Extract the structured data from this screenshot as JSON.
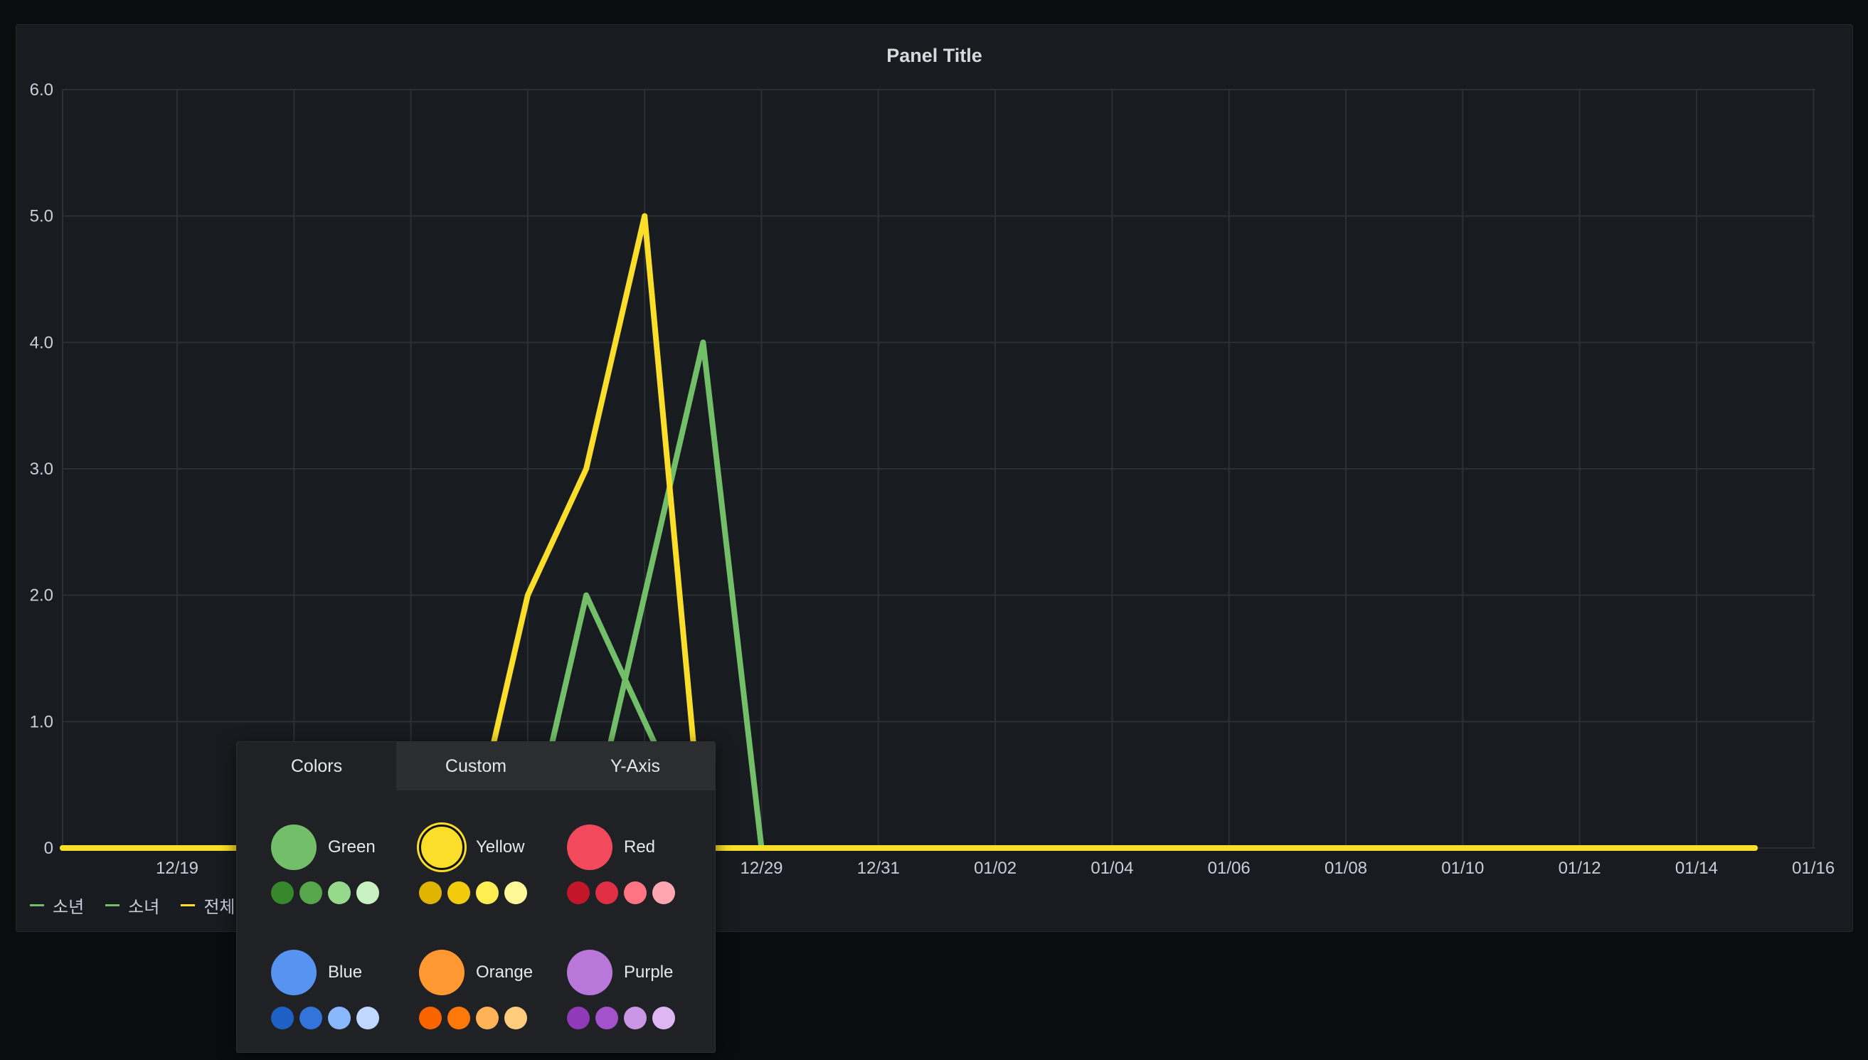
{
  "panel": {
    "title": "Panel Title"
  },
  "chart_data": {
    "type": "line",
    "title": "Panel Title",
    "xlabel": "",
    "ylabel": "",
    "x_range": [
      "12/17",
      "01/16"
    ],
    "ylim": [
      0,
      6
    ],
    "y_ticks": [
      "0",
      "1.0",
      "2.0",
      "3.0",
      "4.0",
      "5.0",
      "6.0"
    ],
    "x_ticks": [
      "12/19",
      "12/21",
      "12/23",
      "12/25",
      "12/27",
      "12/29",
      "12/31",
      "01/02",
      "01/04",
      "01/06",
      "01/08",
      "01/10",
      "01/12",
      "01/14",
      "01/16"
    ],
    "grid": true,
    "legend_position": "bottom-left",
    "series": [
      {
        "name": "소년",
        "color": "#73bf69",
        "x": [
          "12/17",
          "12/25",
          "12/26",
          "12/27",
          "12/28",
          "12/29",
          "01/15"
        ],
        "y": [
          0,
          0,
          2,
          1,
          0,
          0,
          0
        ]
      },
      {
        "name": "소녀",
        "color": "#73bf69",
        "x": [
          "12/17",
          "12/25",
          "12/26",
          "12/27",
          "12/28",
          "12/29",
          "01/15"
        ],
        "y": [
          0,
          0,
          0,
          2,
          4,
          0,
          0
        ]
      },
      {
        "name": "전체",
        "color": "#fade2a",
        "x": [
          "12/17",
          "12/24",
          "12/25",
          "12/26",
          "12/27",
          "12/28",
          "12/29",
          "01/15"
        ],
        "y": [
          0,
          0,
          2,
          3,
          5,
          0,
          0,
          0
        ]
      }
    ]
  },
  "legend": [
    {
      "label": "소년",
      "color": "#73bf69"
    },
    {
      "label": "소녀",
      "color": "#73bf69"
    },
    {
      "label": "전체",
      "color": "#fade2a"
    }
  ],
  "color_picker": {
    "tabs": [
      "Colors",
      "Custom",
      "Y-Axis"
    ],
    "active_tab": "Colors",
    "selected": "Yellow",
    "colors": [
      {
        "name": "Green",
        "main": "#73bf69",
        "shades": [
          "#37872d",
          "#56a64b",
          "#96d98d",
          "#c8f2c2"
        ]
      },
      {
        "name": "Yellow",
        "main": "#fade2a",
        "shades": [
          "#e0b400",
          "#f2cc0c",
          "#ffee52",
          "#fff899"
        ]
      },
      {
        "name": "Red",
        "main": "#f2495c",
        "shades": [
          "#c4162a",
          "#e02f44",
          "#ff7383",
          "#ffa6b0"
        ]
      },
      {
        "name": "Blue",
        "main": "#5794f2",
        "shades": [
          "#1f60c4",
          "#3274d9",
          "#8ab8ff",
          "#c0d8ff"
        ]
      },
      {
        "name": "Orange",
        "main": "#ff9830",
        "shades": [
          "#fa6400",
          "#ff780a",
          "#ffb357",
          "#ffcb7d"
        ]
      },
      {
        "name": "Purple",
        "main": "#b877d9",
        "shades": [
          "#8f3bb8",
          "#a352cc",
          "#ca95e5",
          "#deb6f2"
        ]
      }
    ]
  }
}
